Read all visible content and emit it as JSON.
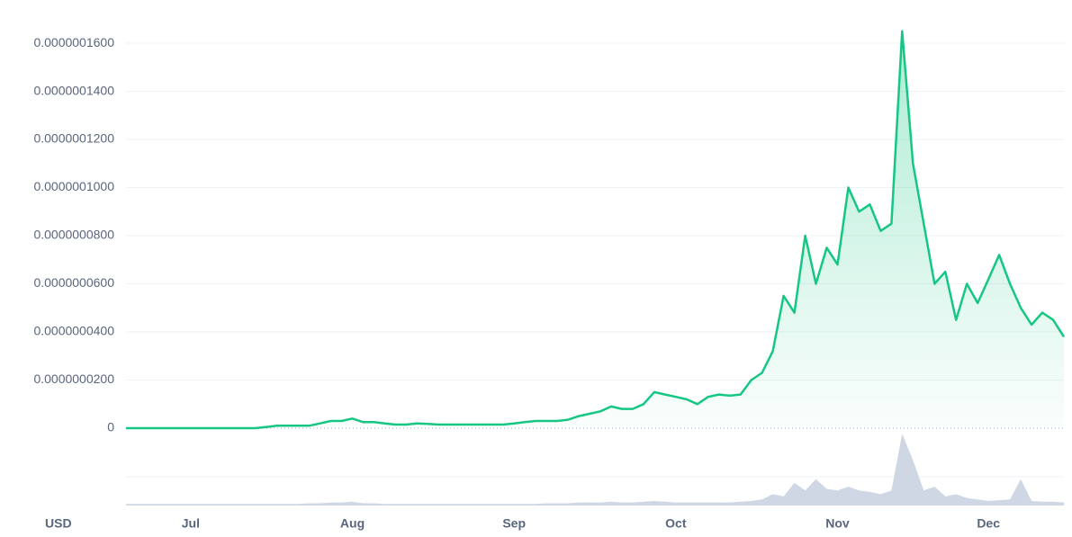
{
  "chart_data": [
    {
      "type": "line",
      "currency": "USD",
      "categories": [
        null,
        null,
        null,
        null,
        null,
        null,
        "Jul",
        null,
        null,
        null,
        null,
        null,
        null,
        null,
        null,
        null,
        null,
        null,
        null,
        null,
        null,
        "Aug",
        null,
        null,
        null,
        null,
        null,
        null,
        null,
        null,
        null,
        null,
        null,
        null,
        null,
        null,
        "Sep",
        null,
        null,
        null,
        null,
        null,
        null,
        null,
        null,
        null,
        null,
        null,
        null,
        null,
        null,
        "Oct",
        null,
        null,
        null,
        null,
        null,
        null,
        null,
        null,
        null,
        null,
        null,
        null,
        null,
        null,
        "Nov",
        null,
        null,
        null,
        null,
        null,
        null,
        null,
        null,
        null,
        null,
        null,
        null,
        null,
        "Dec",
        null,
        null,
        null,
        null,
        null,
        null,
        null
      ],
      "series": [
        {
          "color": "#16c784",
          "values": [
            0,
            0,
            0,
            0,
            0,
            0,
            0,
            0,
            0,
            0,
            0,
            0,
            0,
            5e-10,
            1e-09,
            1e-09,
            1e-09,
            1e-09,
            2e-09,
            3e-09,
            3e-09,
            4e-09,
            2.5e-09,
            2.5e-09,
            2e-09,
            1.5e-09,
            1.5e-09,
            2e-09,
            1.8e-09,
            1.5e-09,
            1.5e-09,
            1.5e-09,
            1.5e-09,
            1.5e-09,
            1.5e-09,
            1.5e-09,
            2e-09,
            2.5e-09,
            3e-09,
            3e-09,
            3e-09,
            3.5e-09,
            5e-09,
            6e-09,
            7e-09,
            9e-09,
            8e-09,
            8e-09,
            1e-08,
            1.5e-08,
            1.4e-08,
            1.3e-08,
            1.2e-08,
            1e-08,
            1.3e-08,
            1.4e-08,
            1.35e-08,
            1.4e-08,
            2e-08,
            2.3e-08,
            3.2e-08,
            5.5e-08,
            4.8e-08,
            8e-08,
            6e-08,
            7.5e-08,
            6.8e-08,
            1e-07,
            9e-08,
            9.3e-08,
            8.2e-08,
            8.5e-08,
            1.65e-07,
            1.1e-07,
            8.5e-08,
            6e-08,
            6.5e-08,
            4.5e-08,
            6e-08,
            5.2e-08,
            6.2e-08,
            7.2e-08,
            6e-08,
            5e-08,
            4.3e-08,
            4.8e-08,
            4.5e-08,
            3.8e-08
          ]
        }
      ],
      "ylim": [
        0,
        1.675e-07
      ],
      "yticks": [
        0,
        {
          "value": 2e-08,
          "label": "0.0000000200"
        },
        {
          "value": 4e-08,
          "label": "0.0000000400"
        },
        {
          "value": 6e-08,
          "label": "0.0000000600"
        },
        {
          "value": 8e-08,
          "label": "0.0000000800"
        },
        {
          "value": 1e-07,
          "label": "0.0000001000"
        },
        {
          "value": 1.2e-07,
          "label": "0.0000001200"
        },
        {
          "value": 1.4e-07,
          "label": "0.0000001400"
        },
        {
          "value": 1.6e-07,
          "label": "0.0000001600"
        }
      ],
      "grid": true
    },
    {
      "type": "area",
      "categories": [
        null,
        null,
        null,
        null,
        null,
        null,
        "Jul",
        null,
        null,
        null,
        null,
        null,
        null,
        null,
        null,
        null,
        null,
        null,
        null,
        null,
        null,
        "Aug",
        null,
        null,
        null,
        null,
        null,
        null,
        null,
        null,
        null,
        null,
        null,
        null,
        null,
        null,
        "Sep",
        null,
        null,
        null,
        null,
        null,
        null,
        null,
        null,
        null,
        null,
        null,
        null,
        null,
        null,
        "Oct",
        null,
        null,
        null,
        null,
        null,
        null,
        null,
        null,
        null,
        null,
        null,
        null,
        null,
        null,
        "Nov",
        null,
        null,
        null,
        null,
        null,
        null,
        null,
        null,
        null,
        null,
        null,
        null,
        null,
        "Dec",
        null,
        null,
        null,
        null,
        null,
        null,
        null
      ],
      "series": [
        {
          "color": "#cfd6e4",
          "values": [
            2,
            2,
            2,
            2,
            2,
            2,
            2,
            2,
            2,
            2,
            2,
            2,
            2,
            2,
            2,
            2,
            2,
            3,
            3,
            4,
            4,
            5,
            3,
            3,
            2,
            2,
            2,
            2,
            2,
            2,
            2,
            2,
            2,
            2,
            2,
            2,
            2,
            2,
            2,
            3,
            3,
            3,
            4,
            4,
            4,
            5,
            4,
            4,
            5,
            6,
            5,
            4,
            4,
            4,
            4,
            4,
            4,
            5,
            6,
            8,
            15,
            12,
            30,
            20,
            35,
            22,
            20,
            25,
            20,
            18,
            15,
            20,
            95,
            60,
            20,
            25,
            12,
            15,
            10,
            8,
            6,
            7,
            8,
            35,
            6,
            5,
            5,
            4
          ]
        }
      ],
      "ylim": [
        0,
        100
      ]
    }
  ]
}
